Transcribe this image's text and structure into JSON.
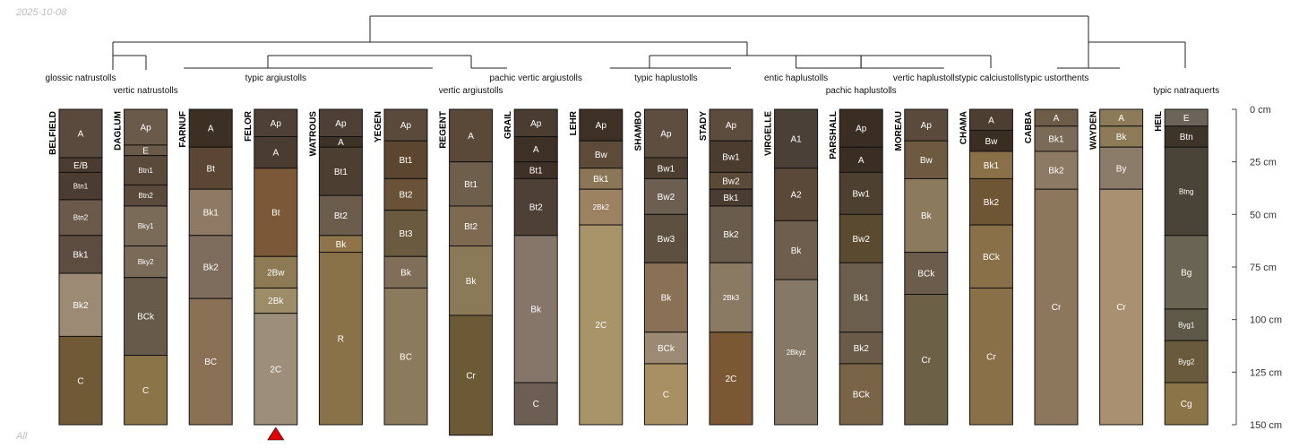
{
  "date_label": "2025-10-08",
  "corner_label": "All",
  "depth_axis": {
    "unit": "cm",
    "max": 150,
    "ticks": [
      {
        "depth": 0,
        "label": "0 cm"
      },
      {
        "depth": 25,
        "label": "25 cm"
      },
      {
        "depth": 50,
        "label": "50 cm"
      },
      {
        "depth": 75,
        "label": "75 cm"
      },
      {
        "depth": 100,
        "label": "100 cm"
      },
      {
        "depth": 125,
        "label": "125 cm"
      },
      {
        "depth": 150,
        "label": "150 cm"
      }
    ]
  },
  "profiles": [
    {
      "name": "BELFIELD",
      "horizons": [
        {
          "label": "A",
          "top": 0,
          "bottom": 23,
          "color": "#5a4a3e"
        },
        {
          "label": "E/B",
          "top": 23,
          "bottom": 30,
          "color": "#4a3c30"
        },
        {
          "label": "Btn1",
          "top": 30,
          "bottom": 43,
          "color": "#4a3c30"
        },
        {
          "label": "Btn2",
          "top": 43,
          "bottom": 60,
          "color": "#6b5a4a"
        },
        {
          "label": "Bk1",
          "top": 60,
          "bottom": 78,
          "color": "#5c4d40"
        },
        {
          "label": "Bk2",
          "top": 78,
          "bottom": 108,
          "color": "#9c8a74"
        },
        {
          "label": "C",
          "top": 108,
          "bottom": 150,
          "color": "#705a36"
        }
      ]
    },
    {
      "name": "DAGLUM",
      "horizons": [
        {
          "label": "Ap",
          "top": 0,
          "bottom": 17,
          "color": "#6a5a4a"
        },
        {
          "label": "E",
          "top": 17,
          "bottom": 22,
          "color": "#6a5a4a"
        },
        {
          "label": "Btn1",
          "top": 22,
          "bottom": 36,
          "color": "#5a4a3c"
        },
        {
          "label": "Btn2",
          "top": 36,
          "bottom": 46,
          "color": "#5a4a3c"
        },
        {
          "label": "Bky1",
          "top": 46,
          "bottom": 65,
          "color": "#7a6a58"
        },
        {
          "label": "Bky2",
          "top": 65,
          "bottom": 80,
          "color": "#7a6a58"
        },
        {
          "label": "BCk",
          "top": 80,
          "bottom": 117,
          "color": "#665a4a"
        },
        {
          "label": "C",
          "top": 117,
          "bottom": 150,
          "color": "#8a7448"
        }
      ]
    },
    {
      "name": "FARNUF",
      "horizons": [
        {
          "label": "A",
          "top": 0,
          "bottom": 18,
          "color": "#3c3024"
        },
        {
          "label": "Bt",
          "top": 18,
          "bottom": 38,
          "color": "#5a4632"
        },
        {
          "label": "Bk1",
          "top": 38,
          "bottom": 60,
          "color": "#8e7a64"
        },
        {
          "label": "Bk2",
          "top": 60,
          "bottom": 90,
          "color": "#7e6c5c"
        },
        {
          "label": "BC",
          "top": 90,
          "bottom": 150,
          "color": "#8a7054"
        }
      ]
    },
    {
      "name": "FELOR",
      "horizons": [
        {
          "label": "Ap",
          "top": 0,
          "bottom": 13,
          "color": "#4e4036"
        },
        {
          "label": "A",
          "top": 13,
          "bottom": 28,
          "color": "#4a3c30"
        },
        {
          "label": "Bt",
          "top": 28,
          "bottom": 70,
          "color": "#7a5838"
        },
        {
          "label": "2Bw",
          "top": 70,
          "bottom": 85,
          "color": "#8e7a54"
        },
        {
          "label": "2Bk",
          "top": 85,
          "bottom": 97,
          "color": "#9c8c68"
        },
        {
          "label": "2C",
          "top": 97,
          "bottom": 150,
          "color": "#9c8e78"
        }
      ]
    },
    {
      "name": "WATROUS",
      "horizons": [
        {
          "label": "Ap",
          "top": 0,
          "bottom": 13,
          "color": "#4e4036"
        },
        {
          "label": "A",
          "top": 13,
          "bottom": 18,
          "color": "#3e3226"
        },
        {
          "label": "Bt1",
          "top": 18,
          "bottom": 41,
          "color": "#4c3e30"
        },
        {
          "label": "Bt2",
          "top": 41,
          "bottom": 60,
          "color": "#6b5c4c"
        },
        {
          "label": "Bk",
          "top": 60,
          "bottom": 68,
          "color": "#8e7448"
        },
        {
          "label": "R",
          "top": 68,
          "bottom": 150,
          "color": "#8a7248"
        }
      ]
    },
    {
      "name": "YEGEN",
      "horizons": [
        {
          "label": "Ap",
          "top": 0,
          "bottom": 15,
          "color": "#5a4a3c"
        },
        {
          "label": "Bt1",
          "top": 15,
          "bottom": 33,
          "color": "#5c4630"
        },
        {
          "label": "Bt2",
          "top": 33,
          "bottom": 48,
          "color": "#6a5238"
        },
        {
          "label": "Bt3",
          "top": 48,
          "bottom": 70,
          "color": "#6a5a40"
        },
        {
          "label": "Bk",
          "top": 70,
          "bottom": 85,
          "color": "#806e58"
        },
        {
          "label": "BC",
          "top": 85,
          "bottom": 150,
          "color": "#8c7a5c"
        }
      ]
    },
    {
      "name": "REGENT",
      "horizons": [
        {
          "label": "A",
          "top": 0,
          "bottom": 25,
          "color": "#5a4838"
        },
        {
          "label": "Bt1",
          "top": 25,
          "bottom": 46,
          "color": "#6e5e4c"
        },
        {
          "label": "Bt2",
          "top": 46,
          "bottom": 65,
          "color": "#7e6a50"
        },
        {
          "label": "Bk",
          "top": 65,
          "bottom": 98,
          "color": "#8a7a58"
        },
        {
          "label": "Cr",
          "top": 98,
          "bottom": 155,
          "color": "#6c5a36"
        }
      ]
    },
    {
      "name": "GRAIL",
      "horizons": [
        {
          "label": "Ap",
          "top": 0,
          "bottom": 13,
          "color": "#4a3c30"
        },
        {
          "label": "A",
          "top": 13,
          "bottom": 25,
          "color": "#3e3024"
        },
        {
          "label": "Bt1",
          "top": 25,
          "bottom": 33,
          "color": "#3e3024"
        },
        {
          "label": "Bt2",
          "top": 33,
          "bottom": 60,
          "color": "#4e4034"
        },
        {
          "label": "Bk",
          "top": 60,
          "bottom": 130,
          "color": "#86766a"
        },
        {
          "label": "C",
          "top": 130,
          "bottom": 150,
          "color": "#6c5e52"
        }
      ]
    },
    {
      "name": "LEHR",
      "horizons": [
        {
          "label": "Ap",
          "top": 0,
          "bottom": 15,
          "color": "#3e3024"
        },
        {
          "label": "Bw",
          "top": 15,
          "bottom": 28,
          "color": "#5e4a38"
        },
        {
          "label": "Bk1",
          "top": 28,
          "bottom": 38,
          "color": "#8c7658"
        },
        {
          "label": "2Bk2",
          "top": 38,
          "bottom": 55,
          "color": "#9c8260"
        },
        {
          "label": "2C",
          "top": 55,
          "bottom": 150,
          "color": "#a89468"
        }
      ]
    },
    {
      "name": "SHAMBO",
      "horizons": [
        {
          "label": "Ap",
          "top": 0,
          "bottom": 23,
          "color": "#5e4e40"
        },
        {
          "label": "Bw1",
          "top": 23,
          "bottom": 33,
          "color": "#4c3e30"
        },
        {
          "label": "Bw2",
          "top": 33,
          "bottom": 50,
          "color": "#6c5e50"
        },
        {
          "label": "Bw3",
          "top": 50,
          "bottom": 73,
          "color": "#5e5040"
        },
        {
          "label": "Bk",
          "top": 73,
          "bottom": 106,
          "color": "#8a7054"
        },
        {
          "label": "BCk",
          "top": 106,
          "bottom": 121,
          "color": "#9c8a74"
        },
        {
          "label": "C",
          "top": 121,
          "bottom": 150,
          "color": "#a89064"
        }
      ]
    },
    {
      "name": "STADY",
      "horizons": [
        {
          "label": "Ap",
          "top": 0,
          "bottom": 15,
          "color": "#5c4c3e"
        },
        {
          "label": "Bw1",
          "top": 15,
          "bottom": 30,
          "color": "#4a3c2e"
        },
        {
          "label": "Bw2",
          "top": 30,
          "bottom": 38,
          "color": "#5c4a38"
        },
        {
          "label": "Bk1",
          "top": 38,
          "bottom": 46,
          "color": "#4a3c30"
        },
        {
          "label": "Bk2",
          "top": 46,
          "bottom": 73,
          "color": "#6a5c4c"
        },
        {
          "label": "2Bk3",
          "top": 73,
          "bottom": 106,
          "color": "#8a7a64"
        },
        {
          "label": "2C",
          "top": 106,
          "bottom": 150,
          "color": "#7a5834"
        }
      ]
    },
    {
      "name": "VIRGELLE",
      "horizons": [
        {
          "label": "A1",
          "top": 0,
          "bottom": 28,
          "color": "#4a4038"
        },
        {
          "label": "A2",
          "top": 28,
          "bottom": 53,
          "color": "#5a4838"
        },
        {
          "label": "Bk",
          "top": 53,
          "bottom": 81,
          "color": "#6e5e4e"
        },
        {
          "label": "2Bkyz",
          "top": 81,
          "bottom": 150,
          "color": "#867866"
        }
      ]
    },
    {
      "name": "PARSHALL",
      "horizons": [
        {
          "label": "Ap",
          "top": 0,
          "bottom": 18,
          "color": "#3a2e22"
        },
        {
          "label": "A",
          "top": 18,
          "bottom": 30,
          "color": "#3a2e22"
        },
        {
          "label": "Bw1",
          "top": 30,
          "bottom": 50,
          "color": "#4e4030"
        },
        {
          "label": "Bw2",
          "top": 50,
          "bottom": 73,
          "color": "#5a4a30"
        },
        {
          "label": "Bk1",
          "top": 73,
          "bottom": 106,
          "color": "#6c5e4c"
        },
        {
          "label": "Bk2",
          "top": 106,
          "bottom": 121,
          "color": "#6a5a48"
        },
        {
          "label": "BCk",
          "top": 121,
          "bottom": 150,
          "color": "#7a6448"
        }
      ]
    },
    {
      "name": "MOREAU",
      "horizons": [
        {
          "label": "Ap",
          "top": 0,
          "bottom": 15,
          "color": "#5a4a3c"
        },
        {
          "label": "Bw",
          "top": 15,
          "bottom": 33,
          "color": "#6e5a40"
        },
        {
          "label": "Bk",
          "top": 33,
          "bottom": 68,
          "color": "#8c7a5c"
        },
        {
          "label": "BCk",
          "top": 68,
          "bottom": 88,
          "color": "#6c5c4c"
        },
        {
          "label": "Cr",
          "top": 88,
          "bottom": 150,
          "color": "#6c6046"
        }
      ]
    },
    {
      "name": "CHAMA",
      "horizons": [
        {
          "label": "A",
          "top": 0,
          "bottom": 10,
          "color": "#4c3e30"
        },
        {
          "label": "Bw",
          "top": 10,
          "bottom": 20,
          "color": "#3a2e22"
        },
        {
          "label": "Bk1",
          "top": 20,
          "bottom": 33,
          "color": "#8a7048"
        },
        {
          "label": "Bk2",
          "top": 33,
          "bottom": 55,
          "color": "#6e5634"
        },
        {
          "label": "BCk",
          "top": 55,
          "bottom": 85,
          "color": "#8a7048"
        },
        {
          "label": "Cr",
          "top": 85,
          "bottom": 150,
          "color": "#8a7048"
        }
      ]
    },
    {
      "name": "CABBA",
      "horizons": [
        {
          "label": "A",
          "top": 0,
          "bottom": 8,
          "color": "#6c5c48"
        },
        {
          "label": "Bk1",
          "top": 8,
          "bottom": 20,
          "color": "#7a6a58"
        },
        {
          "label": "Bk2",
          "top": 20,
          "bottom": 38,
          "color": "#8c7a64"
        },
        {
          "label": "Cr",
          "top": 38,
          "bottom": 150,
          "color": "#8c765c"
        }
      ]
    },
    {
      "name": "WAYDEN",
      "horizons": [
        {
          "label": "A",
          "top": 0,
          "bottom": 8,
          "color": "#8c7a58"
        },
        {
          "label": "Bk",
          "top": 8,
          "bottom": 18,
          "color": "#8c7a58"
        },
        {
          "label": "By",
          "top": 18,
          "bottom": 38,
          "color": "#8a7c68"
        },
        {
          "label": "Cr",
          "top": 38,
          "bottom": 150,
          "color": "#a89070"
        }
      ]
    },
    {
      "name": "HEIL",
      "horizons": [
        {
          "label": "E",
          "top": 0,
          "bottom": 8,
          "color": "#6c6458"
        },
        {
          "label": "Btn",
          "top": 8,
          "bottom": 18,
          "color": "#3e3428"
        },
        {
          "label": "Btng",
          "top": 18,
          "bottom": 60,
          "color": "#4a4438"
        },
        {
          "label": "Bg",
          "top": 60,
          "bottom": 95,
          "color": "#6a6454"
        },
        {
          "label": "Byg1",
          "top": 95,
          "bottom": 110,
          "color": "#5e5848"
        },
        {
          "label": "Byg2",
          "top": 110,
          "bottom": 130,
          "color": "#6a5a3c"
        },
        {
          "label": "Cg",
          "top": 130,
          "bottom": 150,
          "color": "#8a7448"
        }
      ]
    }
  ],
  "group_labels": [
    {
      "text": "glossic natrustolls",
      "profile": 0
    },
    {
      "text": "vertic natrustolls",
      "profile": 1
    },
    {
      "text": "typic argiustolls",
      "profile": 3
    },
    {
      "text": "vertic argiustolls",
      "profile": 6
    },
    {
      "text": "pachic vertic argiustolls",
      "profile": 7
    },
    {
      "text": "typic haplustolls",
      "profile": 9
    },
    {
      "text": "entic haplustolls",
      "profile": 11
    },
    {
      "text": "pachic haplustolls",
      "profile": 12
    },
    {
      "text": "vertic haplustolls",
      "profile": 13
    },
    {
      "text": "typic calciustolls",
      "profile": 14
    },
    {
      "text": "typic ustorthents",
      "profile": 15
    },
    {
      "text": "typic natraquerts",
      "profile": 17
    }
  ],
  "marker": {
    "profile": 3,
    "shape": "triangle",
    "color": "#e00000"
  },
  "colors": {
    "border": "#111111",
    "dendrogram": "#222222",
    "tick_text": "#333333",
    "date_text": "#bdbdbd"
  }
}
